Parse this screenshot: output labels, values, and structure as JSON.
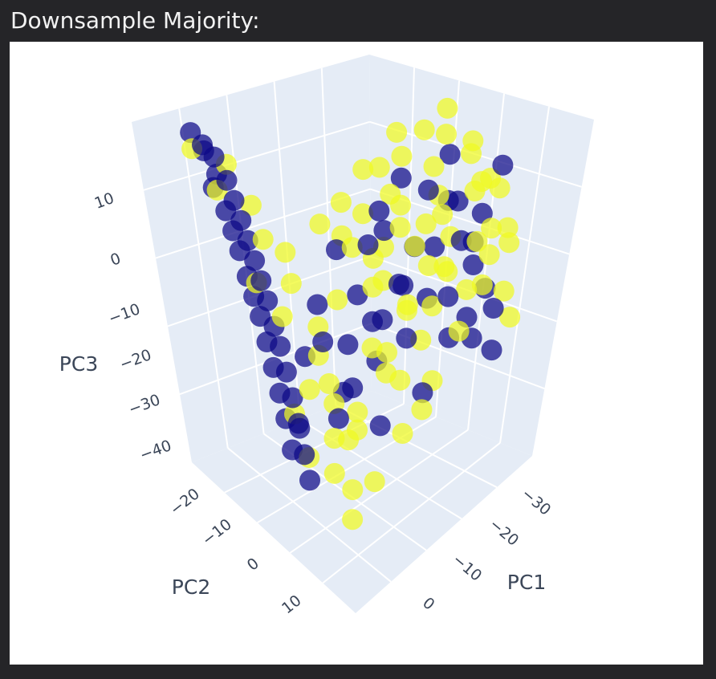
{
  "title": "Downsample Majority:",
  "chart_data": {
    "type": "scatter",
    "dimensions": 3,
    "title": "Downsample Majority:",
    "axes": {
      "x": {
        "label": "PC1",
        "ticks": [
          "−30",
          "−20",
          "−10",
          "0"
        ],
        "range": [
          -36,
          6
        ]
      },
      "y": {
        "label": "PC2",
        "ticks": [
          "−20",
          "−10",
          "0",
          "10"
        ],
        "range": [
          -26,
          14
        ]
      },
      "z": {
        "label": "PC3",
        "ticks": [
          "10",
          "0",
          "−10",
          "−20",
          "−30",
          "−40"
        ],
        "range": [
          -44,
          17
        ]
      }
    },
    "grid": true,
    "legend": "none",
    "colors": {
      "class_0": "#0d0887",
      "class_1": "#f0f921",
      "pane": "#e5ecf6",
      "gridline": "#ffffff"
    },
    "series": [
      {
        "name": "",
        "color": "#0d0887",
        "points": [
          [
            -2,
            -24,
            14
          ],
          [
            -2,
            -22,
            13
          ],
          [
            -2,
            -20,
            12
          ],
          [
            -3,
            -23,
            11
          ],
          [
            -2,
            -18,
            9
          ],
          [
            -3,
            -21,
            8
          ],
          [
            -2,
            -17,
            6
          ],
          [
            -3,
            -22,
            5
          ],
          [
            -2,
            -16,
            3
          ],
          [
            -3,
            -20,
            2
          ],
          [
            -2,
            -15,
            0
          ],
          [
            -3,
            -19,
            -1
          ],
          [
            -2,
            -14,
            -3
          ],
          [
            -3,
            -18,
            -4
          ],
          [
            -2,
            -13,
            -6
          ],
          [
            -3,
            -17,
            -8
          ],
          [
            -2,
            -12,
            -9
          ],
          [
            -3,
            -16,
            -11
          ],
          [
            -2,
            -11,
            -13
          ],
          [
            -3,
            -15,
            -14
          ],
          [
            -2,
            -10,
            -16
          ],
          [
            -3,
            -14,
            -18
          ],
          [
            -2,
            -9,
            -20
          ],
          [
            -3,
            -13,
            -22
          ],
          [
            -2,
            -8,
            -24
          ],
          [
            -3,
            -12,
            -26
          ],
          [
            -2,
            -7,
            -28
          ],
          [
            -3,
            -11,
            -30
          ],
          [
            -2,
            -6,
            -33
          ],
          [
            -3,
            -10,
            -35
          ],
          [
            -2,
            -5,
            -37
          ],
          [
            -4,
            -9,
            -31
          ],
          [
            -5,
            -8,
            -18
          ],
          [
            -6,
            -6,
            -8
          ],
          [
            -8,
            -4,
            2
          ],
          [
            -4,
            -3,
            -12
          ],
          [
            -7,
            -2,
            -22
          ],
          [
            -9,
            -1,
            -5
          ],
          [
            -10,
            0,
            4
          ],
          [
            -12,
            1,
            -10
          ],
          [
            -14,
            -2,
            -20
          ],
          [
            -11,
            2,
            -28
          ],
          [
            -16,
            -3,
            2
          ],
          [
            -18,
            -1,
            -8
          ],
          [
            -15,
            3,
            -14
          ],
          [
            -20,
            -4,
            9
          ],
          [
            -21,
            -2,
            -3
          ],
          [
            -17,
            5,
            -24
          ],
          [
            -22,
            0,
            -12
          ],
          [
            -24,
            1,
            5
          ],
          [
            -26,
            -3,
            -6
          ],
          [
            -23,
            4,
            -18
          ],
          [
            -28,
            -1,
            2
          ],
          [
            -29,
            2,
            -9
          ],
          [
            -30,
            -5,
            8
          ],
          [
            -32,
            0,
            -2
          ],
          [
            -31,
            3,
            -14
          ],
          [
            -33,
            -2,
            -22
          ],
          [
            -34,
            1,
            6
          ],
          [
            -35,
            -4,
            -10
          ],
          [
            -33,
            4,
            -26
          ],
          [
            -30,
            6,
            -16
          ],
          [
            -27,
            5,
            -20
          ],
          [
            -25,
            3,
            -2
          ],
          [
            -19,
            2,
            10
          ],
          [
            -13,
            -1,
            8
          ],
          [
            -9,
            -3,
            -15
          ],
          [
            -6,
            1,
            -19
          ],
          [
            -4,
            0,
            -24
          ],
          [
            -7,
            4,
            -6
          ],
          [
            -11,
            5,
            -1
          ],
          [
            -20,
            6,
            -8
          ]
        ]
      },
      {
        "name": "",
        "color": "#f0f921",
        "points": [
          [
            -1,
            -23,
            12
          ],
          [
            -4,
            -20,
            10
          ],
          [
            -1,
            -19,
            7
          ],
          [
            -5,
            -17,
            4
          ],
          [
            -3,
            -13,
            1
          ],
          [
            -6,
            -12,
            -2
          ],
          [
            -4,
            -9,
            -5
          ],
          [
            -1,
            -8,
            -9
          ],
          [
            -6,
            -6,
            -12
          ],
          [
            -4,
            -4,
            -15
          ],
          [
            -1,
            -3,
            -19
          ],
          [
            -5,
            -2,
            -23
          ],
          [
            -3,
            0,
            -27
          ],
          [
            -1,
            2,
            -31
          ],
          [
            -4,
            3,
            -35
          ],
          [
            -2,
            5,
            -38
          ],
          [
            -6,
            6,
            -33
          ],
          [
            -8,
            -4,
            -7
          ],
          [
            -9,
            -2,
            3
          ],
          [
            -10,
            1,
            -14
          ],
          [
            -12,
            -3,
            7
          ],
          [
            -13,
            0,
            -4
          ],
          [
            -14,
            3,
            -21
          ],
          [
            -15,
            -1,
            10
          ],
          [
            -16,
            2,
            -9
          ],
          [
            -17,
            4,
            -15
          ],
          [
            -18,
            -2,
            6
          ],
          [
            -19,
            0,
            -1
          ],
          [
            -20,
            3,
            -11
          ],
          [
            -21,
            -5,
            12
          ],
          [
            -22,
            -1,
            1
          ],
          [
            -23,
            2,
            -6
          ],
          [
            -24,
            5,
            -17
          ],
          [
            -25,
            -3,
            9
          ],
          [
            -26,
            0,
            -3
          ],
          [
            -27,
            3,
            -12
          ],
          [
            -28,
            -4,
            13
          ],
          [
            -29,
            1,
            4
          ],
          [
            -30,
            4,
            -7
          ],
          [
            -31,
            -2,
            11
          ],
          [
            -32,
            2,
            -4
          ],
          [
            -33,
            5,
            -15
          ],
          [
            -34,
            -1,
            3
          ],
          [
            -35,
            3,
            -8
          ],
          [
            -34,
            6,
            -20
          ],
          [
            -30,
            -6,
            16
          ],
          [
            -26,
            -6,
            14
          ],
          [
            -22,
            -7,
            15
          ],
          [
            -18,
            -6,
            11
          ],
          [
            -14,
            -5,
            13
          ],
          [
            -10,
            -5,
            9
          ],
          [
            -7,
            -6,
            6
          ],
          [
            -5,
            -3,
            -20
          ],
          [
            -8,
            0,
            -25
          ],
          [
            -11,
            3,
            -18
          ],
          [
            -13,
            5,
            -29
          ],
          [
            -16,
            6,
            -26
          ],
          [
            -19,
            5,
            -23
          ],
          [
            -9,
            2,
            -2
          ],
          [
            -12,
            -1,
            0
          ],
          [
            -15,
            1,
            5
          ],
          [
            -21,
            2,
            8
          ],
          [
            -24,
            -2,
            -8
          ],
          [
            -27,
            6,
            -10
          ],
          [
            -29,
            -3,
            -12
          ],
          [
            -31,
            6,
            -2
          ],
          [
            -33,
            -4,
            7
          ],
          [
            -35,
            0,
            1
          ],
          [
            -2,
            -14,
            -7
          ],
          [
            -4,
            -10,
            -29
          ],
          [
            -3,
            -6,
            -34
          ],
          [
            -7,
            -1,
            -30
          ],
          [
            -6,
            2,
            -26
          ],
          [
            -17,
            -4,
            -2
          ],
          [
            -20,
            -2,
            -14
          ],
          [
            -23,
            1,
            3
          ],
          [
            -25,
            6,
            -1
          ],
          [
            -28,
            3,
            7
          ],
          [
            -11,
            -6,
            2
          ],
          [
            -8,
            6,
            -11
          ]
        ]
      }
    ]
  }
}
